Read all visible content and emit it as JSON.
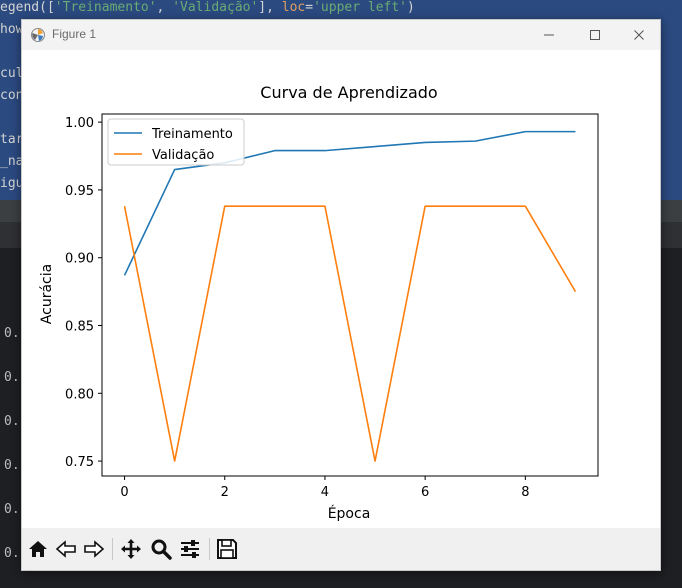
{
  "ide": {
    "code_lines": [
      {
        "text_a": "egend([",
        "str1": "'Treinamento'",
        "text_b": ", ",
        "str2": "'Validação'",
        "text_c": "], ",
        "kw": "loc",
        "text_d": "=",
        "str3": "'upper left'",
        "text_e": ")"
      },
      {
        "text": "how"
      },
      {
        "text": ""
      },
      {
        "text": "cul"
      },
      {
        "text": "con"
      },
      {
        "text": ""
      },
      {
        "text": "tar"
      },
      {
        "text": "_na"
      },
      {
        "text": "igu"
      }
    ],
    "output_lines": [
      "0.",
      "0.",
      "0.",
      "0.",
      "0.",
      "0."
    ]
  },
  "window": {
    "title": "Figure 1",
    "minimize_icon": "minimize-icon",
    "maximize_icon": "maximize-icon",
    "close_icon": "close-icon"
  },
  "toolbar": {
    "buttons": [
      "home-icon",
      "back-arrow-icon",
      "forward-arrow-icon",
      "pan-move-icon",
      "zoom-magnifier-icon",
      "configure-subplots-icon",
      "save-disk-icon"
    ]
  },
  "chart_data": {
    "type": "line",
    "title": "Curva de Aprendizado",
    "xlabel": "Época",
    "ylabel": "Acurácia",
    "x": [
      0,
      1,
      2,
      3,
      4,
      5,
      6,
      7,
      8,
      9
    ],
    "xlim": [
      -0.45,
      9.45
    ],
    "ylim": [
      0.739,
      1.006
    ],
    "xticks": [
      0,
      2,
      4,
      6,
      8
    ],
    "xtick_labels": [
      "0",
      "2",
      "4",
      "6",
      "8"
    ],
    "yticks": [
      0.75,
      0.8,
      0.85,
      0.9,
      0.95,
      1.0
    ],
    "ytick_labels": [
      "0.75",
      "0.80",
      "0.85",
      "0.90",
      "0.95",
      "1.00"
    ],
    "grid": false,
    "legend_position": "upper left",
    "series": [
      {
        "name": "Treinamento",
        "color": "#1f77b4",
        "values": [
          0.887,
          0.965,
          0.97,
          0.979,
          0.979,
          0.982,
          0.985,
          0.986,
          0.993,
          0.993
        ]
      },
      {
        "name": "Validação",
        "color": "#ff7f0e",
        "values": [
          0.938,
          0.75,
          0.938,
          0.938,
          0.938,
          0.75,
          0.938,
          0.938,
          0.938,
          0.875
        ]
      }
    ]
  }
}
